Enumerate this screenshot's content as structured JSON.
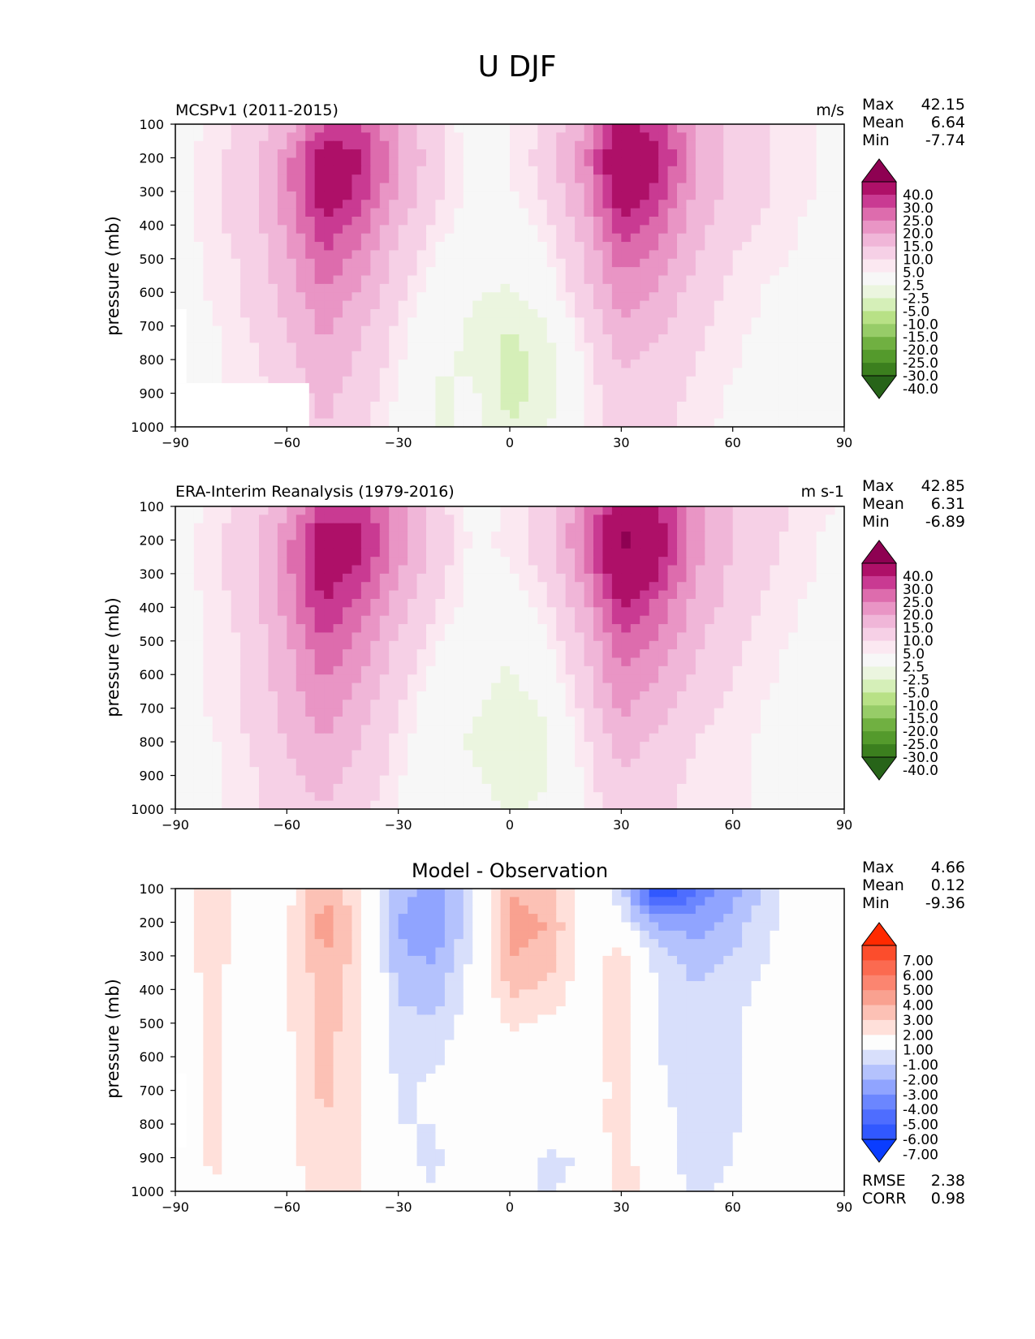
{
  "title": "U DJF",
  "colors": {
    "wind_levels": [
      {
        "min": -40,
        "color": "#276419"
      },
      {
        "min": -30,
        "color": "#3b7f1e"
      },
      {
        "min": -25,
        "color": "#549a2c"
      },
      {
        "min": -20,
        "color": "#70b041"
      },
      {
        "min": -15,
        "color": "#97cc68"
      },
      {
        "min": -10,
        "color": "#b8e186"
      },
      {
        "min": -5,
        "color": "#d5efb8"
      },
      {
        "min": -2.5,
        "color": "#ebf5df"
      },
      {
        "min": 2.5,
        "color": "#f7f7f7"
      },
      {
        "min": 5,
        "color": "#fbe8f1"
      },
      {
        "min": 10,
        "color": "#f6d0e6"
      },
      {
        "min": 15,
        "color": "#f0b6d8"
      },
      {
        "min": 20,
        "color": "#e995c5"
      },
      {
        "min": 25,
        "color": "#dd6cad"
      },
      {
        "min": 30,
        "color": "#c93a92"
      },
      {
        "min": 40,
        "color": "#ae1068"
      },
      {
        "min": 9999,
        "color": "#8e0152"
      }
    ],
    "diff_levels": [
      {
        "min": -7,
        "color": "#0a3dff"
      },
      {
        "min": -6,
        "color": "#3158ff"
      },
      {
        "min": -5,
        "color": "#4e6dff"
      },
      {
        "min": -4,
        "color": "#6b86ff"
      },
      {
        "min": -3,
        "color": "#90a4ff"
      },
      {
        "min": -2,
        "color": "#b4c2fd"
      },
      {
        "min": -1,
        "color": "#d8dffb"
      },
      {
        "min": 1,
        "color": "#fdfdfd"
      },
      {
        "min": 2,
        "color": "#ffe0da"
      },
      {
        "min": 3,
        "color": "#fcc1b5"
      },
      {
        "min": 4,
        "color": "#f9a190"
      },
      {
        "min": 5,
        "color": "#fb8570"
      },
      {
        "min": 6,
        "color": "#fb6a50"
      },
      {
        "min": 7,
        "color": "#fc4d2c"
      },
      {
        "min": 9999,
        "color": "#ff2a00"
      }
    ],
    "missing": "#ffffff"
  },
  "wind_colorbar_labels": [
    "40.0",
    "30.0",
    "25.0",
    "20.0",
    "15.0",
    "10.0",
    "5.0",
    "2.5",
    "-2.5",
    "-5.0",
    "-10.0",
    "-15.0",
    "-20.0",
    "-25.0",
    "-30.0",
    "-40.0"
  ],
  "diff_colorbar_labels": [
    "7.00",
    "6.00",
    "5.00",
    "4.00",
    "3.00",
    "2.00",
    "1.00",
    "-1.00",
    "-2.00",
    "-3.00",
    "-4.00",
    "-5.00",
    "-6.00",
    "-7.00"
  ],
  "xticks": [
    "−90",
    "−60",
    "−30",
    "0",
    "30",
    "60",
    "90"
  ],
  "yticks": [
    "100",
    "200",
    "300",
    "400",
    "500",
    "600",
    "700",
    "800",
    "900",
    "1000"
  ],
  "ylabel": "pressure (mb)",
  "panels": [
    {
      "left_title": "MCSPv1 (2011-2015)",
      "center_title": "",
      "units": "m/s",
      "stats": [
        {
          "label": "Max",
          "value": "42.15"
        },
        {
          "label": "Mean",
          "value": "6.64"
        },
        {
          "label": "Min",
          "value": "-7.74"
        }
      ],
      "colorbar": "wind"
    },
    {
      "left_title": "ERA-Interim Reanalysis (1979-2016)",
      "center_title": "",
      "units": "m s-1",
      "stats": [
        {
          "label": "Max",
          "value": "42.85"
        },
        {
          "label": "Mean",
          "value": "6.31"
        },
        {
          "label": "Min",
          "value": "-6.89"
        }
      ],
      "colorbar": "wind"
    },
    {
      "left_title": "",
      "center_title": "Model - Observation",
      "units": "",
      "stats": [
        {
          "label": "Max",
          "value": "4.66"
        },
        {
          "label": "Mean",
          "value": "0.12"
        },
        {
          "label": "Min",
          "value": "-9.36"
        }
      ],
      "metrics": [
        {
          "label": "RMSE",
          "value": "2.38"
        },
        {
          "label": "CORR",
          "value": "0.98"
        }
      ],
      "colorbar": "diff"
    }
  ],
  "chart_data": [
    {
      "type": "heatmap",
      "title": "MCSPv1 (2011-2015)",
      "units": "m/s",
      "xlabel": "",
      "ylabel": "pressure (mb)",
      "xlim": [
        -90,
        90
      ],
      "ylim": [
        1000,
        100
      ],
      "x": [
        -90,
        -80,
        -70,
        -60,
        -50,
        -40,
        -30,
        -20,
        -10,
        0,
        10,
        20,
        30,
        40,
        50,
        60,
        70,
        80,
        90
      ],
      "y": [
        100,
        200,
        300,
        400,
        500,
        600,
        700,
        800,
        900,
        1000
      ],
      "values": [
        [
          1,
          3,
          6,
          12,
          24,
          26,
          14,
          6,
          0,
          2,
          6,
          15,
          32,
          27,
          14,
          8,
          5,
          3,
          1
        ],
        [
          1,
          4,
          8,
          18,
          36,
          30,
          16,
          7,
          1,
          2,
          7,
          18,
          40,
          32,
          16,
          8,
          5,
          3,
          1
        ],
        [
          1,
          4,
          8,
          18,
          36,
          28,
          14,
          6,
          1,
          2,
          6,
          16,
          36,
          28,
          14,
          8,
          5,
          3,
          1
        ],
        [
          1,
          4,
          7,
          16,
          29,
          22,
          11,
          4,
          1,
          0,
          4,
          12,
          28,
          22,
          12,
          7,
          4,
          2,
          1
        ],
        [
          1,
          3,
          6,
          14,
          24,
          18,
          8,
          2,
          0,
          -2,
          2,
          10,
          22,
          18,
          10,
          5,
          3,
          2,
          1
        ],
        [
          1,
          3,
          6,
          12,
          20,
          14,
          6,
          0,
          -2,
          -3,
          0,
          8,
          18,
          14,
          8,
          4,
          2,
          1,
          1
        ],
        [
          1,
          2,
          5,
          10,
          16,
          11,
          4,
          -1,
          -3,
          -5,
          -3,
          5,
          14,
          11,
          6,
          3,
          2,
          1,
          1
        ],
        [
          0,
          2,
          4,
          8,
          14,
          9,
          3,
          -2,
          -3,
          -6,
          -4,
          3,
          11,
          8,
          5,
          3,
          1,
          1,
          1
        ],
        [
          0,
          2,
          3,
          7,
          12,
          7,
          2,
          -3,
          -2,
          -6,
          -4,
          2,
          9,
          7,
          4,
          2,
          1,
          1,
          0
        ],
        [
          0,
          1,
          3,
          5,
          10,
          6,
          1,
          -3,
          -2,
          -5,
          -3,
          2,
          8,
          6,
          3,
          2,
          1,
          0,
          0
        ]
      ],
      "missing_regions": [
        {
          "x": [
            -90,
            -54
          ],
          "y": [
            870,
            1000
          ]
        },
        {
          "x": [
            -90,
            -87
          ],
          "y": [
            650,
            870
          ]
        }
      ],
      "stats": {
        "max": 42.15,
        "mean": 6.64,
        "min": -7.74
      }
    },
    {
      "type": "heatmap",
      "title": "ERA-Interim Reanalysis (1979-2016)",
      "units": "m s-1",
      "xlabel": "",
      "ylabel": "pressure (mb)",
      "xlim": [
        -90,
        90
      ],
      "ylim": [
        1000,
        100
      ],
      "x": [
        -90,
        -80,
        -70,
        -60,
        -50,
        -40,
        -30,
        -20,
        -10,
        0,
        10,
        20,
        30,
        40,
        50,
        60,
        70,
        80,
        90
      ],
      "y": [
        100,
        200,
        300,
        400,
        500,
        600,
        700,
        800,
        900,
        1000
      ],
      "values": [
        [
          1,
          3,
          7,
          14,
          26,
          28,
          16,
          7,
          1,
          3,
          8,
          18,
          34,
          30,
          16,
          10,
          6,
          4,
          2
        ],
        [
          1,
          4,
          8,
          18,
          36,
          32,
          18,
          8,
          2,
          3,
          8,
          20,
          42,
          34,
          18,
          10,
          6,
          3,
          1
        ],
        [
          1,
          4,
          8,
          18,
          34,
          28,
          15,
          7,
          1,
          2,
          6,
          17,
          38,
          30,
          15,
          9,
          5,
          3,
          1
        ],
        [
          1,
          3,
          7,
          17,
          30,
          22,
          12,
          5,
          1,
          0,
          4,
          13,
          30,
          23,
          13,
          8,
          4,
          2,
          1
        ],
        [
          1,
          3,
          6,
          14,
          25,
          18,
          9,
          3,
          0,
          -2,
          2,
          10,
          24,
          19,
          11,
          6,
          3,
          2,
          1
        ],
        [
          1,
          3,
          6,
          13,
          21,
          15,
          7,
          1,
          -1,
          -3,
          0,
          8,
          20,
          15,
          9,
          5,
          3,
          1,
          1
        ],
        [
          1,
          3,
          6,
          12,
          18,
          12,
          5,
          0,
          -2,
          -4,
          -2,
          6,
          16,
          12,
          7,
          4,
          2,
          1,
          1
        ],
        [
          1,
          2,
          5,
          10,
          15,
          10,
          4,
          -1,
          -3,
          -5,
          -3,
          4,
          12,
          9,
          5,
          3,
          2,
          1,
          1
        ],
        [
          1,
          2,
          4,
          9,
          12,
          8,
          3,
          -2,
          -2,
          -4,
          -3,
          3,
          10,
          7,
          4,
          3,
          2,
          1,
          1
        ],
        [
          1,
          2,
          4,
          7,
          10,
          6,
          2,
          -2,
          -1,
          -3,
          -2,
          2,
          8,
          6,
          4,
          3,
          2,
          1,
          1
        ]
      ],
      "stats": {
        "max": 42.85,
        "mean": 6.31,
        "min": -6.89
      }
    },
    {
      "type": "heatmap",
      "title": "Model - Observation",
      "units": "",
      "xlabel": "",
      "ylabel": "pressure (mb)",
      "xlim": [
        -90,
        90
      ],
      "ylim": [
        1000,
        100
      ],
      "x": [
        -90,
        -80,
        -70,
        -60,
        -50,
        -40,
        -30,
        -20,
        -10,
        0,
        10,
        20,
        30,
        40,
        50,
        60,
        70,
        80,
        90
      ],
      "y": [
        100,
        200,
        300,
        400,
        500,
        600,
        700,
        800,
        900,
        1000
      ],
      "values": [
        [
          0.5,
          1.5,
          0.3,
          0.5,
          2.8,
          1.2,
          -2.5,
          -3.5,
          -1.2,
          3,
          2.2,
          0.3,
          -1.5,
          -7.5,
          -5,
          -3.5,
          -1.5,
          0.2,
          0
        ],
        [
          0.5,
          1.5,
          0.3,
          0.8,
          3.6,
          1.5,
          -3,
          -4,
          -1.2,
          3.5,
          3,
          0.5,
          -0.8,
          -3.5,
          -3.5,
          -2.5,
          -1.2,
          0.1,
          0
        ],
        [
          0.5,
          1.5,
          0.3,
          0.8,
          3,
          1.5,
          -2.8,
          -3.2,
          -0.8,
          3.2,
          2.5,
          0.5,
          1.5,
          -1.5,
          -2.5,
          -2,
          -1,
          0.1,
          0
        ],
        [
          0.3,
          1.2,
          0.3,
          0.8,
          2.5,
          1.4,
          -2.2,
          -2.5,
          -0.5,
          2.2,
          1.8,
          0.4,
          1.8,
          -1.2,
          -2,
          -1.5,
          -0.5,
          0.1,
          0
        ],
        [
          0.2,
          1.2,
          0.3,
          0.8,
          2.5,
          1.3,
          -1.8,
          -1.8,
          -0.3,
          1.2,
          0.8,
          0.3,
          1.5,
          -1,
          -1.5,
          -1.2,
          -0.3,
          0,
          0
        ],
        [
          0.2,
          1.2,
          0.3,
          0.8,
          2.2,
          1.2,
          -1.5,
          -1.2,
          0,
          0.5,
          0.4,
          0.3,
          1.5,
          -1,
          -1.5,
          -1.2,
          -0.2,
          0,
          0
        ],
        [
          0.2,
          1.2,
          0.3,
          0.8,
          2.2,
          1.2,
          -1.2,
          -0.8,
          0,
          0.2,
          0.2,
          0.3,
          1.4,
          -0.8,
          -1.5,
          -1.2,
          0,
          0,
          0
        ],
        [
          0.2,
          1.2,
          0.3,
          0.8,
          2,
          1.2,
          -1,
          -1,
          0,
          -0.5,
          0,
          0.3,
          1.5,
          -0.6,
          -1.5,
          -1.2,
          0,
          0,
          0
        ],
        [
          0.1,
          1.2,
          0.2,
          0.8,
          1.5,
          1.2,
          -0.8,
          -1.2,
          0,
          -0.5,
          -1.2,
          -1,
          1.8,
          -0.5,
          -1.5,
          -1,
          0,
          0,
          0
        ],
        [
          0.1,
          1,
          0.2,
          0.6,
          1.2,
          1.2,
          -0.6,
          -1,
          0,
          -0.3,
          -1.2,
          -0.6,
          2,
          -0.3,
          -1.2,
          -0.8,
          0,
          0,
          0
        ]
      ],
      "missing_regions": [
        {
          "x": [
            -90,
            -87
          ],
          "y": [
            650,
            870
          ]
        }
      ],
      "stats": {
        "max": 4.66,
        "mean": 0.12,
        "min": -9.36
      },
      "metrics": {
        "rmse": 2.38,
        "corr": 0.98
      }
    }
  ]
}
